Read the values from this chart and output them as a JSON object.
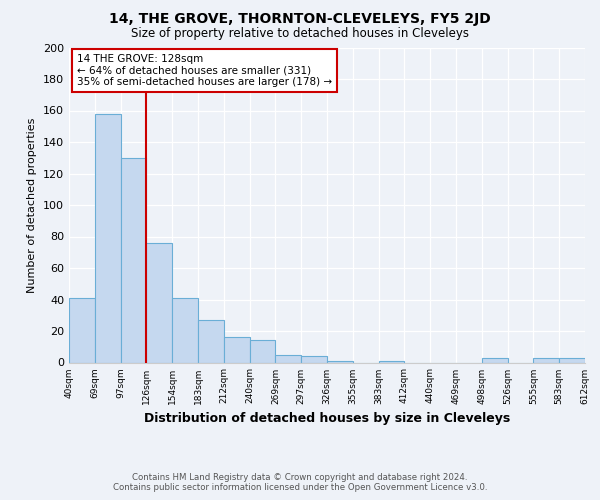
{
  "title": "14, THE GROVE, THORNTON-CLEVELEYS, FY5 2JD",
  "subtitle": "Size of property relative to detached houses in Cleveleys",
  "xlabel": "Distribution of detached houses by size in Cleveleys",
  "ylabel": "Number of detached properties",
  "bar_values": [
    41,
    158,
    130,
    76,
    41,
    27,
    16,
    14,
    5,
    4,
    1,
    0,
    1,
    0,
    0,
    0,
    3,
    0,
    3,
    3
  ],
  "tick_labels": [
    "40sqm",
    "69sqm",
    "97sqm",
    "126sqm",
    "154sqm",
    "183sqm",
    "212sqm",
    "240sqm",
    "269sqm",
    "297sqm",
    "326sqm",
    "355sqm",
    "383sqm",
    "412sqm",
    "440sqm",
    "469sqm",
    "498sqm",
    "526sqm",
    "555sqm",
    "583sqm",
    "612sqm"
  ],
  "bar_color": "#c5d8ef",
  "bar_edge_color": "#6aaed6",
  "vline_x": 3,
  "vline_color": "#cc0000",
  "annotation_title": "14 THE GROVE: 128sqm",
  "annotation_line1": "← 64% of detached houses are smaller (331)",
  "annotation_line2": "35% of semi-detached houses are larger (178) →",
  "annotation_box_color": "#ffffff",
  "annotation_box_edge": "#cc0000",
  "ylim": [
    0,
    200
  ],
  "yticks": [
    0,
    20,
    40,
    60,
    80,
    100,
    120,
    140,
    160,
    180,
    200
  ],
  "footer_line1": "Contains HM Land Registry data © Crown copyright and database right 2024.",
  "footer_line2": "Contains public sector information licensed under the Open Government Licence v3.0.",
  "bg_color": "#eef2f8"
}
